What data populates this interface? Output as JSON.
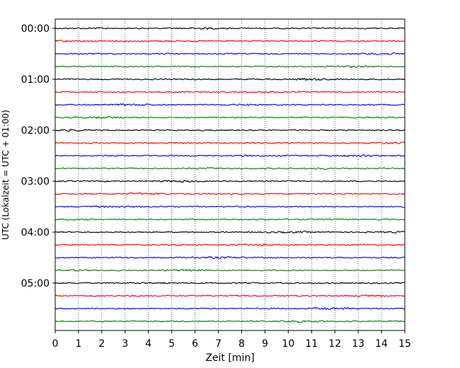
{
  "chart_data": {
    "type": "line",
    "title": "",
    "xlabel": "Zeit  [min]",
    "ylabel": "UTC (Lokalzeit = UTC + 01:00)",
    "xlim": [
      0,
      15
    ],
    "x_ticks": [
      "0",
      "1",
      "2",
      "3",
      "4",
      "5",
      "6",
      "7",
      "8",
      "9",
      "10",
      "11",
      "12",
      "13",
      "14",
      "15"
    ],
    "y_tick_labels": [
      "00:00",
      "01:00",
      "02:00",
      "03:00",
      "04:00",
      "05:00"
    ],
    "grid": "vertical dotted lines at each minute",
    "legend": "none",
    "trace_color_cycle": [
      "#000000",
      "#ff0000",
      "#0000ff",
      "#008000"
    ],
    "series": [
      {
        "start": "00:00",
        "color": "#000000"
      },
      {
        "start": "00:15",
        "color": "#ff0000"
      },
      {
        "start": "00:30",
        "color": "#0000ff"
      },
      {
        "start": "00:45",
        "color": "#008000"
      },
      {
        "start": "01:00",
        "color": "#000000"
      },
      {
        "start": "01:15",
        "color": "#ff0000"
      },
      {
        "start": "01:30",
        "color": "#0000ff"
      },
      {
        "start": "01:45",
        "color": "#008000"
      },
      {
        "start": "02:00",
        "color": "#000000"
      },
      {
        "start": "02:15",
        "color": "#ff0000"
      },
      {
        "start": "02:30",
        "color": "#0000ff"
      },
      {
        "start": "02:45",
        "color": "#008000"
      },
      {
        "start": "03:00",
        "color": "#000000"
      },
      {
        "start": "03:15",
        "color": "#ff0000"
      },
      {
        "start": "03:30",
        "color": "#0000ff"
      },
      {
        "start": "03:45",
        "color": "#008000"
      },
      {
        "start": "04:00",
        "color": "#000000"
      },
      {
        "start": "04:15",
        "color": "#ff0000"
      },
      {
        "start": "04:30",
        "color": "#0000ff"
      },
      {
        "start": "04:45",
        "color": "#008000"
      },
      {
        "start": "05:00",
        "color": "#000000"
      },
      {
        "start": "05:15",
        "color": "#ff0000"
      },
      {
        "start": "05:30",
        "color": "#0000ff"
      },
      {
        "start": "05:45",
        "color": "#008000"
      }
    ]
  }
}
